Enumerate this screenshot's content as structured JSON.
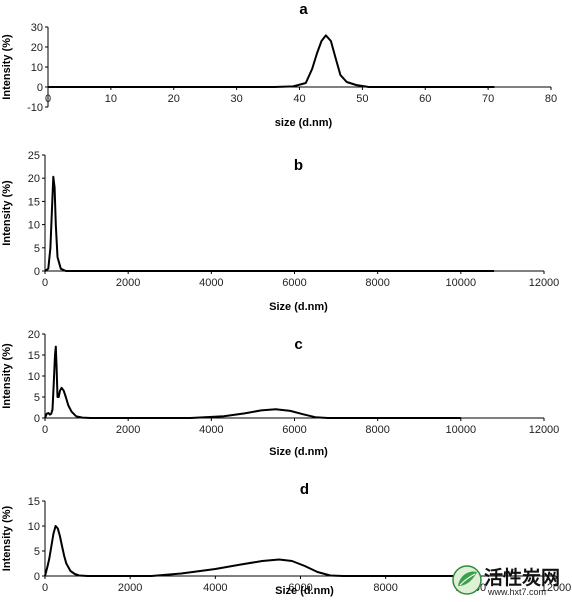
{
  "chart_data": [
    {
      "type": "line",
      "title": "a",
      "xlabel": "size (d.nm)",
      "ylabel": "Intensity (%)",
      "xlim": [
        0,
        80
      ],
      "ylim": [
        -10,
        30
      ],
      "xticks": [
        0,
        10,
        20,
        30,
        40,
        50,
        60,
        70,
        80
      ],
      "yticks": [
        -10,
        0,
        10,
        20,
        30
      ],
      "xtick_labels": [
        "0",
        "10",
        "20",
        "30",
        "40",
        "50",
        "60",
        "70",
        "80"
      ],
      "ytick_labels": [
        "-10",
        "0",
        "10",
        "20",
        "30"
      ],
      "grid": false,
      "x": [
        0,
        36,
        39,
        41,
        42,
        42.8,
        43.5,
        44.2,
        45,
        45.7,
        46.5,
        47.5,
        49,
        51,
        55,
        71
      ],
      "y": [
        0,
        0,
        0.3,
        2,
        9,
        17,
        23,
        25.8,
        23,
        15,
        6,
        2.5,
        1,
        0,
        0,
        0
      ]
    },
    {
      "type": "line",
      "title": "b",
      "xlabel": "Size (d.nm)",
      "ylabel": "Intensity (%)",
      "xlim": [
        0,
        12000
      ],
      "ylim": [
        0,
        25
      ],
      "xticks": [
        0,
        2000,
        4000,
        6000,
        8000,
        10000,
        12000
      ],
      "yticks": [
        0,
        5,
        10,
        15,
        20,
        25
      ],
      "xtick_labels": [
        "0",
        "2000",
        "4000",
        "6000",
        "8000",
        "10000",
        "12000"
      ],
      "ytick_labels": [
        "0",
        "5",
        "10",
        "15",
        "20",
        "25"
      ],
      "grid": false,
      "x": [
        0,
        80,
        130,
        170,
        200,
        230,
        260,
        300,
        380,
        500,
        700,
        10800
      ],
      "y": [
        0,
        0.5,
        5,
        14,
        20.3,
        18,
        10,
        3,
        0.5,
        0,
        0,
        0
      ]
    },
    {
      "type": "line",
      "title": "c",
      "xlabel": "Size (d.nm)",
      "ylabel": "Intensity (%)",
      "xlim": [
        0,
        12000
      ],
      "ylim": [
        0,
        20
      ],
      "xticks": [
        0,
        2000,
        4000,
        6000,
        8000,
        10000,
        12000
      ],
      "yticks": [
        0,
        5,
        10,
        15,
        20
      ],
      "xtick_labels": [
        "0",
        "2000",
        "4000",
        "6000",
        "8000",
        "10000",
        "12000"
      ],
      "ytick_labels": [
        "0",
        "5",
        "10",
        "15",
        "20"
      ],
      "grid": false,
      "x": [
        0,
        40,
        80,
        120,
        150,
        180,
        210,
        240,
        260,
        280,
        300,
        330,
        360,
        400,
        450,
        500,
        560,
        640,
        750,
        900,
        1100,
        2000,
        3500,
        4300,
        4800,
        5200,
        5550,
        5900,
        6200,
        6500,
        6800,
        7200,
        10000
      ],
      "y": [
        0,
        1,
        1.2,
        0.8,
        1,
        2,
        8,
        15,
        17,
        12,
        5,
        5,
        6.5,
        7.2,
        6.5,
        5,
        3,
        1.5,
        0.4,
        0.1,
        0,
        0,
        0,
        0.4,
        1.1,
        1.8,
        2.1,
        1.7,
        0.9,
        0.2,
        0,
        0,
        0
      ]
    },
    {
      "type": "line",
      "title": "d",
      "xlabel": "Size (d.nm)",
      "ylabel": "Intensity (%)",
      "xlim": [
        0,
        12000
      ],
      "ylim": [
        0,
        15
      ],
      "xticks": [
        0,
        2000,
        4000,
        6000,
        8000,
        10000,
        12000
      ],
      "yticks": [
        0,
        5,
        10,
        15
      ],
      "xtick_labels": [
        "0",
        "2000",
        "4000",
        "6000",
        "8000",
        "10000",
        "12000"
      ],
      "ytick_labels": [
        "0",
        "5",
        "10",
        "15"
      ],
      "grid": false,
      "x": [
        0,
        30,
        60,
        100,
        150,
        200,
        250,
        300,
        350,
        400,
        450,
        500,
        600,
        700,
        800,
        1000,
        1500,
        2500,
        3200,
        4000,
        4600,
        5100,
        5500,
        5800,
        6100,
        6400,
        6700,
        7000,
        8000,
        10000
      ],
      "y": [
        0,
        1,
        2,
        3.5,
        6,
        8.5,
        10,
        9.5,
        8,
        6,
        4,
        2.5,
        1,
        0.4,
        0.1,
        0,
        0,
        0,
        0.5,
        1.4,
        2.3,
        3,
        3.3,
        3,
        2,
        0.8,
        0.1,
        0,
        0,
        0
      ]
    }
  ],
  "watermark": {
    "main": "活性炭网",
    "sub": "www.hxt7.com"
  }
}
